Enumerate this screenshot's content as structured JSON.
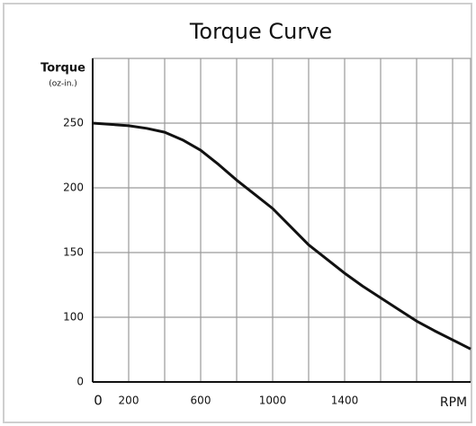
{
  "chart_data": {
    "type": "line",
    "title": "Torque Curve",
    "y_label": "Torque",
    "y_unit": "(oz-in.)",
    "x_label": "RPM",
    "x": [
      0,
      100,
      200,
      300,
      400,
      500,
      600,
      700,
      800,
      900,
      1000,
      1100,
      1200,
      1300,
      1400,
      1500,
      1600,
      1700,
      1800,
      1900,
      2000,
      2100
    ],
    "values": [
      250,
      249,
      248,
      246,
      243,
      237,
      229,
      218,
      206,
      195,
      184,
      170,
      156,
      145,
      134,
      124,
      115,
      106,
      94,
      79,
      65,
      51
    ],
    "color": "#111111",
    "xlim": [
      0,
      2100
    ],
    "xticks": [
      0,
      200,
      600,
      1000,
      1400
    ],
    "x_grid": [
      200,
      400,
      600,
      800,
      1000,
      1200,
      1400,
      1600,
      1800,
      2000
    ],
    "yticks": [
      0,
      100,
      150,
      200,
      250
    ],
    "grid": true
  }
}
